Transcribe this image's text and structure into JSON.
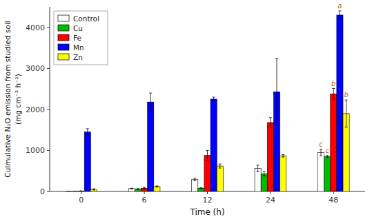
{
  "chart_data": {
    "type": "bar",
    "xlabel": "Time (h)",
    "ylabel": "Culmulative N₂O emission from studied soil\n(mg cm⁻² h⁻¹)",
    "categories": [
      "0",
      "6",
      "12",
      "24",
      "48"
    ],
    "series": [
      {
        "name": "Control",
        "color": "white",
        "values": [
          5,
          70,
          290,
          560,
          950
        ],
        "errors": [
          3,
          10,
          30,
          80,
          80
        ]
      },
      {
        "name": "Cu",
        "color": "#00bb00",
        "values": [
          5,
          60,
          80,
          430,
          850
        ],
        "errors": [
          3,
          10,
          10,
          50,
          30
        ]
      },
      {
        "name": "Fe",
        "color": "red",
        "values": [
          10,
          80,
          880,
          1680,
          2380
        ],
        "errors": [
          5,
          20,
          120,
          120,
          130
        ]
      },
      {
        "name": "Mn",
        "color": "blue",
        "values": [
          1450,
          2180,
          2250,
          2430,
          4300
        ],
        "errors": [
          80,
          220,
          50,
          820,
          100
        ]
      },
      {
        "name": "Zn",
        "color": "yellow",
        "values": [
          50,
          120,
          620,
          870,
          1900
        ],
        "errors": [
          15,
          15,
          50,
          30,
          330
        ]
      }
    ],
    "annotations": [
      {
        "text": "c",
        "category": "48",
        "series": "Control",
        "color": "#cc6600"
      },
      {
        "text": "c",
        "category": "48",
        "series": "Cu",
        "color": "#cc6600"
      },
      {
        "text": "b",
        "category": "48",
        "series": "Fe",
        "color": "#cc6600"
      },
      {
        "text": "a",
        "category": "48",
        "series": "Mn",
        "color": "#cc6600"
      },
      {
        "text": "b",
        "category": "48",
        "series": "Zn",
        "color": "#cc6600"
      }
    ],
    "ylim": [
      0,
      4500
    ],
    "yticks": [
      0,
      1000,
      2000,
      3000,
      4000
    ],
    "grid": false,
    "legend": "upper left"
  }
}
